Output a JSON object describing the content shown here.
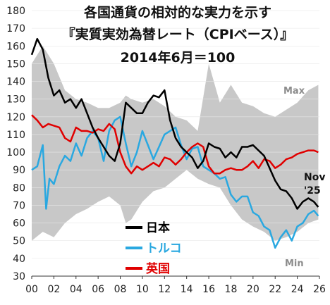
{
  "chart_data": {
    "type": "line",
    "title_lines": [
      "各国通貨の相対的な実力を示す",
      "『実質実効為替レート（CPIベース）』",
      "2014年6月＝100"
    ],
    "xlim": [
      2000,
      2026
    ],
    "ylim": [
      30,
      180
    ],
    "x_ticks": [
      2000,
      2002,
      2004,
      2006,
      2008,
      2010,
      2012,
      2014,
      2016,
      2018,
      2020,
      2022,
      2024,
      2026
    ],
    "x_tick_labels": [
      "00",
      "02",
      "04",
      "06",
      "08",
      "10",
      "12",
      "14",
      "16",
      "18",
      "20",
      "22",
      "24",
      "26"
    ],
    "y_ticks": [
      30,
      40,
      50,
      60,
      70,
      80,
      90,
      100,
      110,
      120,
      130,
      140,
      150,
      160,
      170,
      180
    ],
    "y_tick_labels": [
      "30",
      "40",
      "50",
      "60",
      "70",
      "80",
      "90",
      "100",
      "110",
      "120",
      "130",
      "140",
      "150",
      "160",
      "170",
      "180"
    ],
    "band_labels": {
      "max": "Max",
      "min": "Min"
    },
    "latest_label": [
      "Nov",
      "'25"
    ],
    "colors": {
      "japan": "#000000",
      "turkey": "#2aa8e0",
      "uk": "#e00000",
      "band": "#c8c8c8"
    },
    "band": {
      "x": [
        2000,
        2001,
        2002,
        2003,
        2004,
        2005,
        2006,
        2007,
        2008,
        2008.5,
        2009,
        2010,
        2011,
        2012,
        2013,
        2014,
        2015,
        2016,
        2017,
        2018,
        2019,
        2020,
        2021,
        2022,
        2023,
        2024,
        2025,
        2025.9
      ],
      "max": [
        150,
        160,
        150,
        135,
        130,
        128,
        125,
        125,
        128,
        132,
        130,
        128,
        130,
        126,
        120,
        118,
        112,
        150,
        128,
        138,
        128,
        126,
        122,
        120,
        124,
        128,
        135,
        138
      ],
      "min": [
        50,
        55,
        52,
        60,
        65,
        68,
        72,
        75,
        70,
        60,
        62,
        72,
        78,
        80,
        85,
        90,
        85,
        82,
        80,
        70,
        62,
        58,
        55,
        50,
        52,
        55,
        60,
        62
      ]
    },
    "series": [
      {
        "name": "日本",
        "x": [
          2000,
          2000.5,
          2001,
          2001.5,
          2002,
          2002.5,
          2003,
          2003.5,
          2004,
          2004.5,
          2005,
          2005.5,
          2006,
          2006.5,
          2007,
          2007.5,
          2008,
          2008.5,
          2009,
          2009.5,
          2010,
          2010.5,
          2011,
          2011.5,
          2012,
          2012.5,
          2013,
          2013.5,
          2014,
          2014.5,
          2015,
          2015.5,
          2016,
          2016.5,
          2017,
          2017.5,
          2018,
          2018.5,
          2019,
          2019.5,
          2020,
          2020.5,
          2021,
          2021.5,
          2022,
          2022.5,
          2023,
          2023.5,
          2024,
          2024.5,
          2025,
          2025.5,
          2025.9
        ],
        "values": [
          155,
          164,
          158,
          142,
          132,
          135,
          128,
          130,
          125,
          130,
          122,
          114,
          108,
          103,
          98,
          95,
          105,
          128,
          125,
          122,
          122,
          128,
          132,
          131,
          135,
          118,
          108,
          103,
          100,
          97,
          91,
          95,
          105,
          103,
          102,
          97,
          100,
          97,
          103,
          103,
          104,
          101,
          98,
          91,
          84,
          79,
          78,
          74,
          68,
          72,
          74,
          72,
          69
        ]
      },
      {
        "name": "トルコ",
        "x": [
          2000,
          2000.5,
          2001,
          2001.3,
          2001.6,
          2002,
          2002.5,
          2003,
          2003.5,
          2004,
          2004.5,
          2005,
          2005.5,
          2006,
          2006.5,
          2007,
          2007.5,
          2008,
          2008.5,
          2009,
          2009.5,
          2010,
          2010.5,
          2011,
          2011.5,
          2012,
          2012.5,
          2013,
          2013.5,
          2014,
          2014.5,
          2015,
          2015.5,
          2016,
          2016.5,
          2017,
          2017.5,
          2018,
          2018.5,
          2019,
          2019.5,
          2020,
          2020.5,
          2021,
          2021.5,
          2022,
          2022.5,
          2023,
          2023.5,
          2024,
          2024.5,
          2025,
          2025.5,
          2025.9
        ],
        "values": [
          90,
          92,
          104,
          68,
          85,
          82,
          92,
          98,
          95,
          105,
          98,
          108,
          112,
          108,
          95,
          112,
          118,
          120,
          105,
          92,
          100,
          112,
          104,
          96,
          103,
          110,
          112,
          114,
          104,
          96,
          102,
          103,
          92,
          90,
          88,
          85,
          86,
          76,
          72,
          75,
          75,
          66,
          64,
          58,
          56,
          46,
          52,
          56,
          50,
          58,
          60,
          65,
          67,
          64
        ]
      },
      {
        "name": "英国",
        "x": [
          2000,
          2000.5,
          2001,
          2001.5,
          2002,
          2002.5,
          2003,
          2003.5,
          2004,
          2004.5,
          2005,
          2005.5,
          2006,
          2006.5,
          2007,
          2007.5,
          2008,
          2008.5,
          2009,
          2009.5,
          2010,
          2010.5,
          2011,
          2011.5,
          2012,
          2012.5,
          2013,
          2013.5,
          2014,
          2014.5,
          2015,
          2015.5,
          2016,
          2016.5,
          2017,
          2017.5,
          2018,
          2018.5,
          2019,
          2019.5,
          2020,
          2020.5,
          2021,
          2021.5,
          2022,
          2022.5,
          2023,
          2023.5,
          2024,
          2024.5,
          2025,
          2025.5,
          2025.9
        ],
        "values": [
          121,
          118,
          114,
          116,
          115,
          114,
          108,
          106,
          114,
          112,
          112,
          111,
          113,
          112,
          116,
          113,
          100,
          92,
          88,
          92,
          90,
          92,
          94,
          92,
          97,
          96,
          93,
          96,
          100,
          103,
          105,
          103,
          92,
          88,
          88,
          90,
          91,
          90,
          90,
          92,
          95,
          91,
          96,
          95,
          91,
          93,
          96,
          97,
          99,
          100,
          101,
          101,
          100
        ]
      }
    ]
  }
}
